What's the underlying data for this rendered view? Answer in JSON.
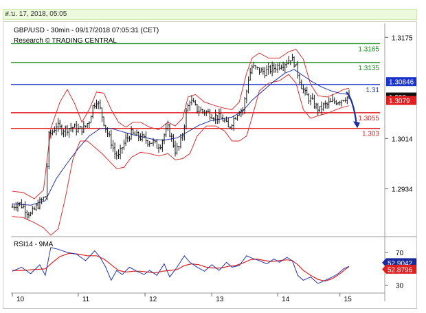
{
  "header": {
    "date_text": "ส.บ. 17, 2018, 05:05"
  },
  "chart_data": [
    {
      "type": "candlestick",
      "title": "GBP/USD - 30min - 09/17/2018 07:05:31 (CET)",
      "subtitle": "Research © TRADING CENTRAL",
      "ylim": [
        1.286,
        1.3195
      ],
      "y_ticks": [
        "1.3175",
        "1.3014",
        "1.2934"
      ],
      "x_ticks": [
        "10",
        "11",
        "12",
        "13",
        "14",
        "15"
      ],
      "current_price": "1.30846",
      "price_label_2": "1.308",
      "price_label_3": "1.3079",
      "levels": [
        {
          "value": 1.3165,
          "label": "1.3165",
          "color": "#1e8c1e"
        },
        {
          "value": 1.3135,
          "label": "1.3135",
          "color": "#1e8c1e"
        },
        {
          "value": 1.31,
          "label": "1.31",
          "color": "#1a33cc"
        },
        {
          "value": 1.3055,
          "label": "1.3055",
          "color": "#e02020"
        },
        {
          "value": 1.303,
          "label": "1.303",
          "color": "#e02020"
        }
      ],
      "close_path": [
        [
          0,
          1.2905
        ],
        [
          6,
          1.2912
        ],
        [
          12,
          1.2905
        ],
        [
          16,
          1.2898
        ],
        [
          20,
          1.2893
        ],
        [
          26,
          1.2905
        ],
        [
          32,
          1.2915
        ],
        [
          36,
          1.2922
        ],
        [
          40,
          1.3018
        ],
        [
          44,
          1.3025
        ],
        [
          48,
          1.3035
        ],
        [
          54,
          1.3028
        ],
        [
          60,
          1.303
        ],
        [
          66,
          1.3032
        ],
        [
          72,
          1.3028
        ],
        [
          78,
          1.303
        ],
        [
          84,
          1.3042
        ],
        [
          88,
          1.3065
        ],
        [
          92,
          1.3075
        ],
        [
          96,
          1.306
        ],
        [
          100,
          1.304
        ],
        [
          104,
          1.3022
        ],
        [
          108,
          1.3008
        ],
        [
          112,
          1.299
        ],
        [
          116,
          1.2985
        ],
        [
          120,
          1.3
        ],
        [
          124,
          1.3012
        ],
        [
          130,
          1.3022
        ],
        [
          136,
          1.3018
        ],
        [
          142,
          1.3015
        ],
        [
          148,
          1.301
        ],
        [
          154,
          1.3008
        ],
        [
          158,
          1.3002
        ],
        [
          162,
          1.3005
        ],
        [
          166,
          1.302
        ],
        [
          170,
          1.303
        ],
        [
          174,
          1.3015
        ],
        [
          178,
          1.2995
        ],
        [
          182,
          1.3
        ],
        [
          186,
          1.302
        ],
        [
          190,
          1.3055
        ],
        [
          194,
          1.3075
        ],
        [
          198,
          1.3068
        ],
        [
          202,
          1.306
        ],
        [
          208,
          1.3058
        ],
        [
          214,
          1.3055
        ],
        [
          220,
          1.305
        ],
        [
          226,
          1.3048
        ],
        [
          232,
          1.3042
        ],
        [
          236,
          1.303
        ],
        [
          240,
          1.304
        ],
        [
          244,
          1.305
        ],
        [
          248,
          1.306
        ],
        [
          252,
          1.306
        ],
        [
          256,
          1.309
        ],
        [
          258,
          1.311
        ],
        [
          262,
          1.3128
        ],
        [
          266,
          1.3125
        ],
        [
          270,
          1.3122
        ],
        [
          276,
          1.312
        ],
        [
          282,
          1.3124
        ],
        [
          288,
          1.3128
        ],
        [
          294,
          1.3132
        ],
        [
          300,
          1.3136
        ],
        [
          304,
          1.3142
        ],
        [
          308,
          1.3135
        ],
        [
          312,
          1.3118
        ],
        [
          316,
          1.3098
        ],
        [
          320,
          1.3085
        ],
        [
          324,
          1.3078
        ],
        [
          328,
          1.3072
        ],
        [
          332,
          1.3064
        ],
        [
          336,
          1.306
        ],
        [
          340,
          1.3066
        ],
        [
          344,
          1.3068
        ],
        [
          350,
          1.3072
        ],
        [
          356,
          1.3074
        ],
        [
          362,
          1.3078
        ],
        [
          366,
          1.308
        ],
        [
          368,
          1.3079
        ]
      ],
      "ma_path": [
        [
          0,
          1.291
        ],
        [
          20,
          1.2908
        ],
        [
          36,
          1.2915
        ],
        [
          48,
          1.295
        ],
        [
          60,
          1.2975
        ],
        [
          72,
          1.2998
        ],
        [
          84,
          1.3018
        ],
        [
          96,
          1.303
        ],
        [
          108,
          1.303
        ],
        [
          120,
          1.3025
        ],
        [
          132,
          1.302
        ],
        [
          144,
          1.3016
        ],
        [
          156,
          1.3012
        ],
        [
          168,
          1.3012
        ],
        [
          180,
          1.3015
        ],
        [
          192,
          1.3025
        ],
        [
          204,
          1.3035
        ],
        [
          216,
          1.3042
        ],
        [
          228,
          1.3045
        ],
        [
          240,
          1.3048
        ],
        [
          252,
          1.3058
        ],
        [
          262,
          1.3075
        ],
        [
          274,
          1.309
        ],
        [
          286,
          1.3105
        ],
        [
          298,
          1.3118
        ],
        [
          308,
          1.3124
        ],
        [
          318,
          1.3114
        ],
        [
          328,
          1.3104
        ],
        [
          338,
          1.3096
        ],
        [
          348,
          1.309
        ],
        [
          358,
          1.3086
        ],
        [
          368,
          1.3084
        ]
      ],
      "bb_upper": [
        [
          0,
          1.293
        ],
        [
          12,
          1.2928
        ],
        [
          24,
          1.2918
        ],
        [
          34,
          1.2932
        ],
        [
          42,
          1.303
        ],
        [
          52,
          1.3072
        ],
        [
          60,
          1.3092
        ],
        [
          68,
          1.307
        ],
        [
          76,
          1.304
        ],
        [
          84,
          1.306
        ],
        [
          92,
          1.3088
        ],
        [
          100,
          1.3086
        ],
        [
          108,
          1.306
        ],
        [
          116,
          1.304
        ],
        [
          124,
          1.3032
        ],
        [
          132,
          1.304
        ],
        [
          140,
          1.304
        ],
        [
          150,
          1.3032
        ],
        [
          160,
          1.3028
        ],
        [
          170,
          1.304
        ],
        [
          178,
          1.3034
        ],
        [
          186,
          1.3046
        ],
        [
          192,
          1.308
        ],
        [
          200,
          1.3084
        ],
        [
          210,
          1.3072
        ],
        [
          222,
          1.3066
        ],
        [
          232,
          1.3062
        ],
        [
          240,
          1.306
        ],
        [
          248,
          1.3072
        ],
        [
          256,
          1.3118
        ],
        [
          262,
          1.3142
        ],
        [
          270,
          1.315
        ],
        [
          280,
          1.3142
        ],
        [
          292,
          1.3142
        ],
        [
          302,
          1.3152
        ],
        [
          310,
          1.3156
        ],
        [
          318,
          1.314
        ],
        [
          326,
          1.31
        ],
        [
          334,
          1.3082
        ],
        [
          344,
          1.308
        ],
        [
          354,
          1.3086
        ],
        [
          362,
          1.3092
        ],
        [
          368,
          1.3094
        ]
      ],
      "bb_lower": [
        [
          0,
          1.289
        ],
        [
          12,
          1.2888
        ],
        [
          24,
          1.288
        ],
        [
          34,
          1.2872
        ],
        [
          42,
          1.286
        ],
        [
          50,
          1.287
        ],
        [
          58,
          1.292
        ],
        [
          66,
          1.298
        ],
        [
          74,
          1.301
        ],
        [
          82,
          1.301
        ],
        [
          90,
          1.3
        ],
        [
          98,
          1.299
        ],
        [
          106,
          1.2978
        ],
        [
          114,
          1.2966
        ],
        [
          122,
          1.2968
        ],
        [
          130,
          1.2984
        ],
        [
          140,
          1.2992
        ],
        [
          150,
          1.299
        ],
        [
          160,
          1.2986
        ],
        [
          170,
          1.299
        ],
        [
          178,
          1.298
        ],
        [
          186,
          1.2982
        ],
        [
          194,
          1.299
        ],
        [
          202,
          1.3018
        ],
        [
          212,
          1.3034
        ],
        [
          222,
          1.3034
        ],
        [
          232,
          1.3026
        ],
        [
          240,
          1.301
        ],
        [
          248,
          1.301
        ],
        [
          256,
          1.3018
        ],
        [
          262,
          1.3048
        ],
        [
          270,
          1.309
        ],
        [
          280,
          1.3102
        ],
        [
          292,
          1.3106
        ],
        [
          302,
          1.3116
        ],
        [
          310,
          1.3102
        ],
        [
          318,
          1.306
        ],
        [
          326,
          1.3046
        ],
        [
          334,
          1.305
        ],
        [
          344,
          1.3054
        ],
        [
          354,
          1.306
        ],
        [
          362,
          1.3064
        ],
        [
          368,
          1.3066
        ]
      ]
    },
    {
      "type": "line",
      "title": "RSI14 - 9MA",
      "ylim": [
        22,
        86
      ],
      "y_ticks": [
        "70",
        "30"
      ],
      "rsi_value": "52.9042",
      "ma_value": "52.8796",
      "rsi": [
        [
          0,
          47
        ],
        [
          10,
          52
        ],
        [
          20,
          44
        ],
        [
          30,
          55
        ],
        [
          36,
          42
        ],
        [
          42,
          76
        ],
        [
          50,
          74
        ],
        [
          60,
          70
        ],
        [
          70,
          68
        ],
        [
          80,
          60
        ],
        [
          90,
          72
        ],
        [
          96,
          64
        ],
        [
          102,
          52
        ],
        [
          108,
          36
        ],
        [
          114,
          48
        ],
        [
          120,
          43
        ],
        [
          128,
          52
        ],
        [
          136,
          47
        ],
        [
          144,
          43
        ],
        [
          150,
          48
        ],
        [
          158,
          42
        ],
        [
          166,
          56
        ],
        [
          172,
          40
        ],
        [
          180,
          52
        ],
        [
          188,
          66
        ],
        [
          194,
          58
        ],
        [
          202,
          52
        ],
        [
          210,
          47
        ],
        [
          218,
          55
        ],
        [
          226,
          48
        ],
        [
          234,
          58
        ],
        [
          240,
          52
        ],
        [
          248,
          54
        ],
        [
          256,
          66
        ],
        [
          262,
          63
        ],
        [
          270,
          60
        ],
        [
          278,
          56
        ],
        [
          286,
          62
        ],
        [
          292,
          58
        ],
        [
          300,
          64
        ],
        [
          306,
          60
        ],
        [
          312,
          42
        ],
        [
          318,
          36
        ],
        [
          326,
          40
        ],
        [
          334,
          32
        ],
        [
          342,
          36
        ],
        [
          350,
          40
        ],
        [
          356,
          44
        ],
        [
          362,
          50
        ],
        [
          368,
          53
        ]
      ],
      "rsi_ma": [
        [
          0,
          48
        ],
        [
          12,
          48
        ],
        [
          24,
          49
        ],
        [
          36,
          50
        ],
        [
          44,
          58
        ],
        [
          52,
          65
        ],
        [
          62,
          69
        ],
        [
          72,
          68
        ],
        [
          82,
          66
        ],
        [
          92,
          66
        ],
        [
          100,
          62
        ],
        [
          108,
          55
        ],
        [
          116,
          48
        ],
        [
          124,
          46
        ],
        [
          132,
          47
        ],
        [
          140,
          47
        ],
        [
          148,
          46
        ],
        [
          156,
          45
        ],
        [
          164,
          47
        ],
        [
          172,
          48
        ],
        [
          180,
          49
        ],
        [
          188,
          54
        ],
        [
          196,
          56
        ],
        [
          204,
          55
        ],
        [
          212,
          52
        ],
        [
          220,
          51
        ],
        [
          228,
          51
        ],
        [
          236,
          53
        ],
        [
          244,
          54
        ],
        [
          252,
          57
        ],
        [
          260,
          61
        ],
        [
          268,
          62
        ],
        [
          276,
          60
        ],
        [
          284,
          59
        ],
        [
          292,
          60
        ],
        [
          300,
          61
        ],
        [
          306,
          60
        ],
        [
          312,
          55
        ],
        [
          318,
          48
        ],
        [
          326,
          42
        ],
        [
          334,
          37
        ],
        [
          342,
          35
        ],
        [
          350,
          38
        ],
        [
          358,
          44
        ],
        [
          368,
          52.9
        ]
      ]
    }
  ]
}
